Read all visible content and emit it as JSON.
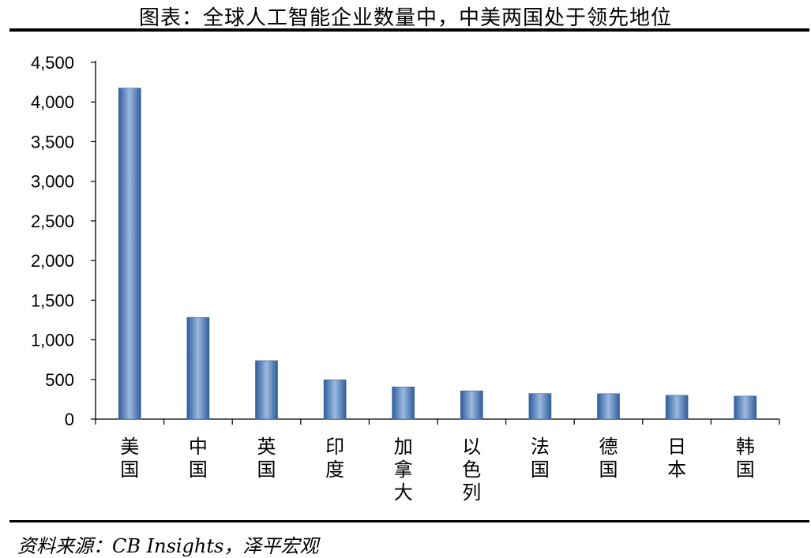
{
  "title": "图表：全球人工智能企业数量中，中美两国处于领先地位",
  "source": "资料来源：CB Insights，泽平宏观",
  "colors": {
    "bar_edge": "#2E5E9E",
    "bar_mid": "#9DB9DE",
    "axis": "#000000"
  },
  "chart_data": {
    "type": "bar",
    "categories": [
      "美国",
      "中国",
      "英国",
      "印度",
      "加拿大",
      "以色列",
      "法国",
      "德国",
      "日本",
      "韩国"
    ],
    "values": [
      4175,
      1282,
      737,
      496,
      406,
      356,
      322,
      320,
      300,
      290
    ],
    "ylim": [
      0,
      4500
    ],
    "yticks": [
      0,
      500,
      1000,
      1500,
      2000,
      2500,
      3000,
      3500,
      4000,
      4500
    ],
    "ytick_labels": [
      "0",
      "500",
      "1,000",
      "1,500",
      "2,000",
      "2,500",
      "3,000",
      "3,500",
      "4,000",
      "4,500"
    ],
    "xlabel": "",
    "ylabel": "",
    "grid": false,
    "legend": "none"
  }
}
